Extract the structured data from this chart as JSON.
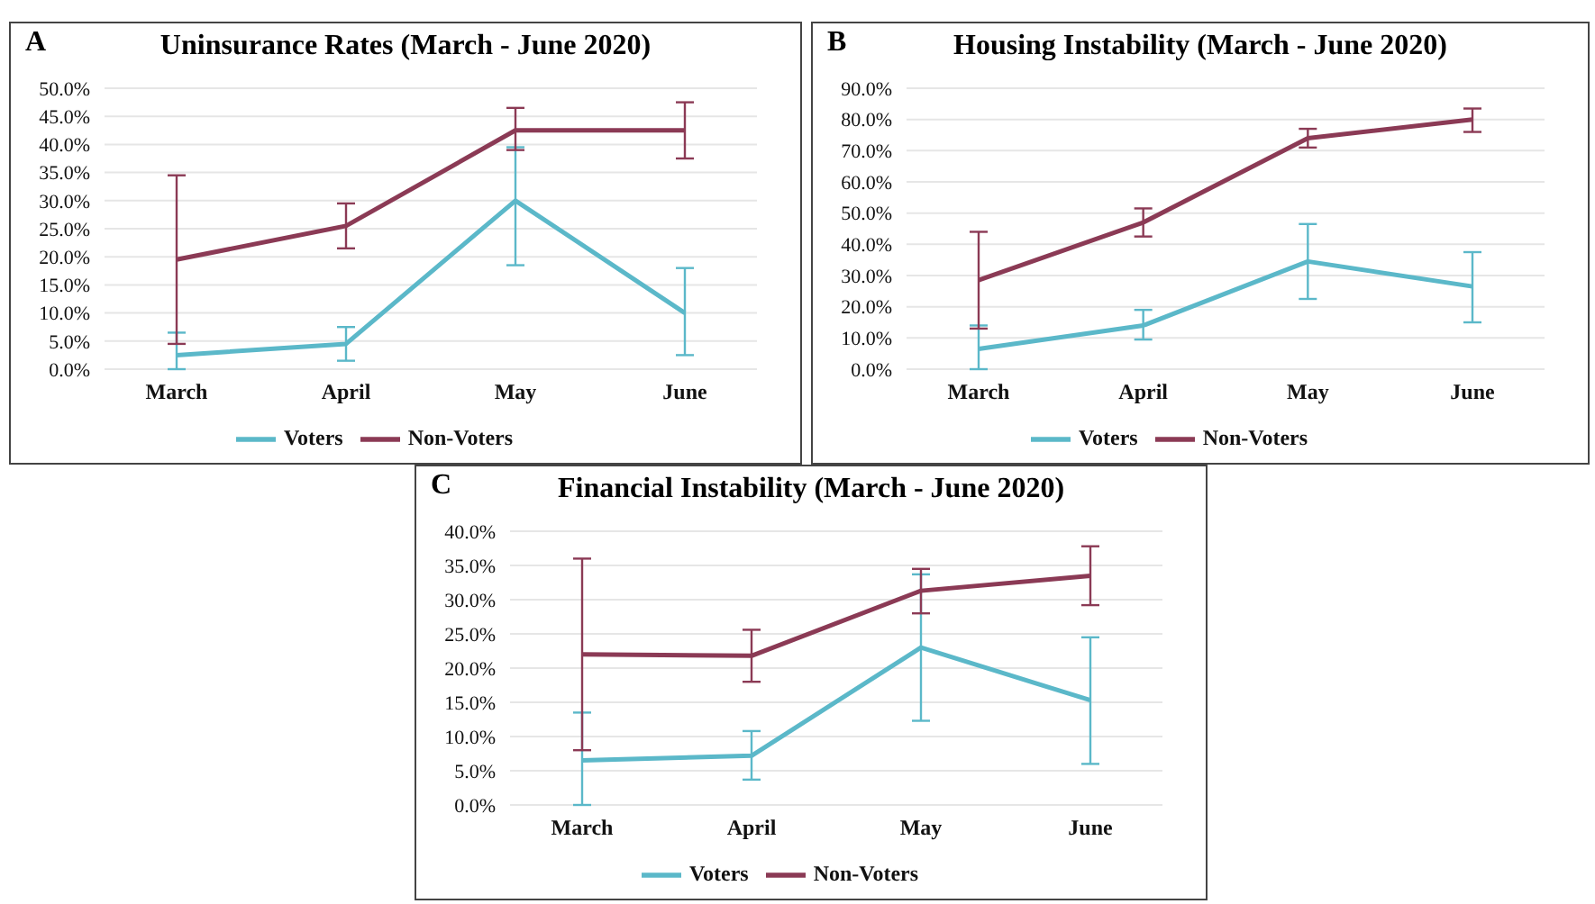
{
  "chart_data": [
    {
      "type": "line",
      "title": "Uninsurance Rates (March - June 2020)",
      "annotations": [
        "A"
      ],
      "categories": [
        "March",
        "April",
        "May",
        "June"
      ],
      "ylim": [
        0,
        50
      ],
      "yticks": [
        {
          "value": 0,
          "label": "0.0%"
        },
        {
          "value": 5,
          "label": "5.0%"
        },
        {
          "value": 10,
          "label": "10.0%"
        },
        {
          "value": 15,
          "label": "15.0%"
        },
        {
          "value": 20,
          "label": "20.0%"
        },
        {
          "value": 25,
          "label": "25.0%"
        },
        {
          "value": 30,
          "label": "30.0%"
        },
        {
          "value": 35,
          "label": "35.0%"
        },
        {
          "value": 40,
          "label": "40.0%"
        },
        {
          "value": 45,
          "label": "45.0%"
        },
        {
          "value": 50,
          "label": "50.0%"
        }
      ],
      "grid": "y",
      "legend": "bottom",
      "marker": "none",
      "line_style": "solid",
      "series": [
        {
          "name": "Voters",
          "color": "#5bb8c9",
          "values": [
            2.5,
            4.5,
            30,
            10
          ],
          "errors": [
            [
              0,
              6.5
            ],
            [
              1.5,
              7.5
            ],
            [
              18.5,
              39.5
            ],
            [
              2.5,
              18
            ]
          ]
        },
        {
          "name": "Non-Voters",
          "color": "#8b3a55",
          "values": [
            19.5,
            25.5,
            42.5,
            42.5
          ],
          "errors": [
            [
              4.5,
              34.5
            ],
            [
              21.5,
              29.5
            ],
            [
              39,
              46.5
            ],
            [
              37.5,
              47.5
            ]
          ]
        }
      ]
    },
    {
      "type": "line",
      "title": "Housing Instability (March - June 2020)",
      "annotations": [
        "B"
      ],
      "categories": [
        "March",
        "April",
        "May",
        "June"
      ],
      "ylim": [
        0,
        90
      ],
      "yticks": [
        {
          "value": 0,
          "label": "0.0%"
        },
        {
          "value": 10,
          "label": "10.0%"
        },
        {
          "value": 20,
          "label": "20.0%"
        },
        {
          "value": 30,
          "label": "30.0%"
        },
        {
          "value": 40,
          "label": "40.0%"
        },
        {
          "value": 50,
          "label": "50.0%"
        },
        {
          "value": 60,
          "label": "60.0%"
        },
        {
          "value": 70,
          "label": "70.0%"
        },
        {
          "value": 80,
          "label": "80.0%"
        },
        {
          "value": 90,
          "label": "90.0%"
        }
      ],
      "grid": "y",
      "legend": "bottom",
      "marker": "none",
      "line_style": "solid",
      "series": [
        {
          "name": "Voters",
          "color": "#5bb8c9",
          "values": [
            6.5,
            14,
            34.5,
            26.5
          ],
          "errors": [
            [
              0,
              14
            ],
            [
              9.5,
              19
            ],
            [
              22.5,
              46.5
            ],
            [
              15,
              37.5
            ]
          ]
        },
        {
          "name": "Non-Voters",
          "color": "#8b3a55",
          "values": [
            28.5,
            47,
            74,
            80
          ],
          "errors": [
            [
              13,
              44
            ],
            [
              42.5,
              51.5
            ],
            [
              71,
              77
            ],
            [
              76,
              83.5
            ]
          ]
        }
      ]
    },
    {
      "type": "line",
      "title": "Financial Instability (March - June 2020)",
      "annotations": [
        "C"
      ],
      "categories": [
        "March",
        "April",
        "May",
        "June"
      ],
      "ylim": [
        0,
        40
      ],
      "yticks": [
        {
          "value": 0,
          "label": "0.0%"
        },
        {
          "value": 5,
          "label": "5.0%"
        },
        {
          "value": 10,
          "label": "10.0%"
        },
        {
          "value": 15,
          "label": "15.0%"
        },
        {
          "value": 20,
          "label": "20.0%"
        },
        {
          "value": 25,
          "label": "25.0%"
        },
        {
          "value": 30,
          "label": "30.0%"
        },
        {
          "value": 35,
          "label": "35.0%"
        },
        {
          "value": 40,
          "label": "40.0%"
        }
      ],
      "grid": "y",
      "legend": "bottom",
      "marker": "none",
      "line_style": "solid",
      "series": [
        {
          "name": "Voters",
          "color": "#5bb8c9",
          "values": [
            6.5,
            7.2,
            23,
            15.3
          ],
          "errors": [
            [
              0,
              13.5
            ],
            [
              3.7,
              10.8
            ],
            [
              12.3,
              33.7
            ],
            [
              6,
              24.5
            ]
          ]
        },
        {
          "name": "Non-Voters",
          "color": "#8b3a55",
          "values": [
            22,
            21.8,
            31.3,
            33.5
          ],
          "errors": [
            [
              8,
              36
            ],
            [
              18,
              25.6
            ],
            [
              28,
              34.5
            ],
            [
              29.2,
              37.8
            ]
          ]
        }
      ]
    }
  ]
}
